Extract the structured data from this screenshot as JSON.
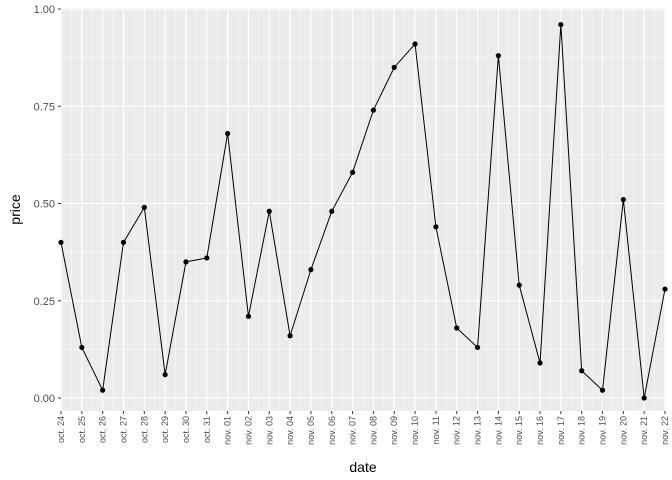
{
  "chart_data": {
    "type": "line",
    "xlabel": "date",
    "ylabel": "price",
    "ylim": [
      -0.03,
      1.0
    ],
    "y_ticks": [
      {
        "value": 0.0,
        "label": "0.00"
      },
      {
        "value": 0.25,
        "label": "0.25"
      },
      {
        "value": 0.5,
        "label": "0.50"
      },
      {
        "value": 0.75,
        "label": "0.75"
      },
      {
        "value": 1.0,
        "label": "1.00"
      }
    ],
    "x": [
      "oct. 24",
      "oct. 25",
      "oct. 26",
      "oct. 27",
      "oct. 28",
      "oct. 29",
      "oct. 30",
      "oct. 31",
      "nov. 01",
      "nov. 02",
      "nov. 03",
      "nov. 04",
      "nov. 05",
      "nov. 06",
      "nov. 07",
      "nov. 08",
      "nov. 09",
      "nov. 10",
      "nov. 11",
      "nov. 12",
      "nov. 13",
      "nov. 14",
      "nov. 15",
      "nov. 16",
      "nov. 17",
      "nov. 18",
      "nov. 19",
      "nov. 20",
      "nov. 21",
      "nov. 22"
    ],
    "series": [
      {
        "values": [
          0.4,
          0.13,
          0.02,
          0.4,
          0.49,
          0.06,
          0.35,
          0.36,
          0.68,
          0.21,
          0.48,
          0.16,
          0.33,
          0.48,
          0.58,
          0.74,
          0.85,
          0.91,
          0.44,
          0.18,
          0.13,
          0.88,
          0.29,
          0.09,
          0.96,
          0.07,
          0.02,
          0.51,
          0.0,
          0.28
        ]
      }
    ],
    "grid": true,
    "panel_background": "#ebebeb",
    "grid_color": "#ffffff",
    "line_color": "#000000",
    "point_color": "#000000"
  }
}
